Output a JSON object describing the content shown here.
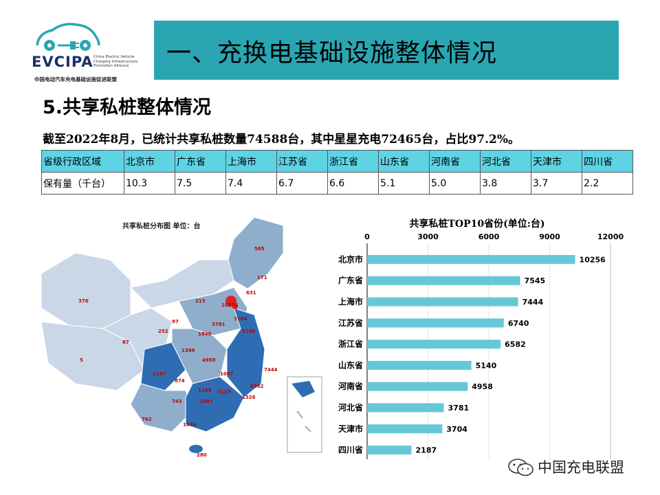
{
  "logo": {
    "name": "EVCIPA",
    "en_lines": [
      "China Electric Vehicle",
      "Charging Infrastructure",
      "Promotion Alliance"
    ],
    "cn": "中国电动汽车充电基础设施促进联盟"
  },
  "header": {
    "title": "一、充换电基础设施整体情况"
  },
  "section": {
    "title": "5.共享私桩整体情况",
    "summary": "截至2022年8月，已统计共享私桩数量74588台，其中星星充电72465台，占比97.2%。"
  },
  "table": {
    "header": [
      "省级行政区域",
      "北京市",
      "广东省",
      "上海市",
      "江苏省",
      "浙江省",
      "山东省",
      "河南省",
      "河北省",
      "天津市",
      "四川省"
    ],
    "row": [
      "保有量（千台）",
      "10.3",
      "7.5",
      "7.4",
      "6.7",
      "6.6",
      "5.1",
      "5.0",
      "3.8",
      "3.7",
      "2.2"
    ]
  },
  "map": {
    "title": "共享私桩分布图  单位：台",
    "labels": [
      "565",
      "171",
      "631",
      "370",
      "215",
      "10256",
      "3704",
      "3781",
      "5140",
      "97",
      "252",
      "1846",
      "87",
      "1399",
      "4958",
      "7444",
      "5",
      "2187",
      "874",
      "1198",
      "1007",
      "6582",
      "743",
      "1081",
      "1119",
      "1326",
      "762",
      "1344",
      "280"
    ],
    "colors": {
      "light": "#c9d7e6",
      "mid": "#8eaecb",
      "dark": "#2e6db4",
      "hot": "#e02020"
    }
  },
  "chart_data": {
    "type": "bar",
    "orientation": "horizontal",
    "title": "共享私桩TOP10省份(单位:台)",
    "categories": [
      "北京市",
      "广东省",
      "上海市",
      "江苏省",
      "浙江省",
      "山东省",
      "河南省",
      "河北省",
      "天津市",
      "四川省"
    ],
    "values": [
      10256,
      7545,
      7444,
      6740,
      6582,
      5140,
      4958,
      3781,
      3704,
      2187
    ],
    "xlim": [
      0,
      12000
    ],
    "xticks": [
      "0",
      "3000",
      "6000",
      "9000",
      "12000"
    ],
    "grid": true,
    "bar_color": "#66c8d6"
  },
  "watermark": {
    "text": "中国充电联盟"
  }
}
